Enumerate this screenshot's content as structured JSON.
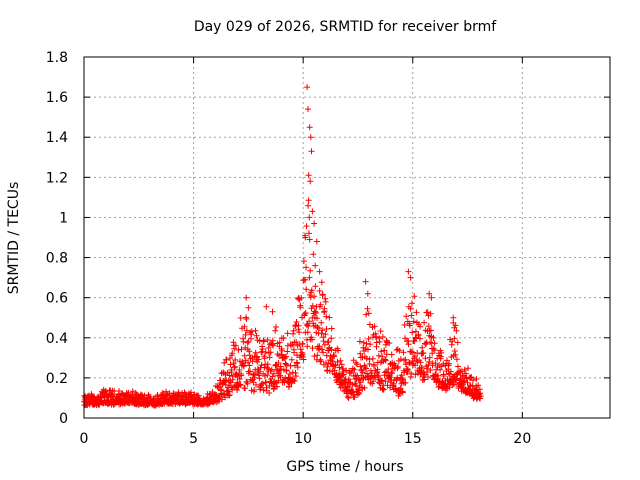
{
  "chart_data": {
    "type": "scatter",
    "title": "Day 029 of 2026, SRMTID for receiver brmf",
    "xlabel": "GPS time / hours",
    "ylabel": "SRMTID / TECUs",
    "xlim": [
      0,
      24
    ],
    "ylim": [
      0,
      1.8
    ],
    "xticks": [
      0,
      5,
      10,
      15,
      20
    ],
    "xtick_labels": [
      "0",
      "5",
      "10",
      "15",
      "20"
    ],
    "yticks": [
      0,
      0.2,
      0.4,
      0.6,
      0.8,
      1.0,
      1.2,
      1.4,
      1.6,
      1.8
    ],
    "ytick_labels": [
      "0",
      "0.2",
      "0.4",
      "0.6",
      "0.8",
      "1",
      "1.2",
      "1.4",
      "1.6",
      "1.8"
    ],
    "grid": true,
    "marker": "plus",
    "series_color": "#ff0000",
    "envelope": {
      "description": "typical level and upper spread of SRMTID vs time (hours, TECU)",
      "x": [
        0,
        1,
        2,
        3,
        4,
        5,
        5.5,
        6,
        6.5,
        7,
        7.3,
        7.5,
        8,
        8.5,
        9,
        9.5,
        10,
        10.2,
        10.5,
        11,
        11.5,
        12,
        12.5,
        12.8,
        13,
        13.5,
        14,
        14.5,
        14.8,
        15,
        15.5,
        15.8,
        16,
        16.5,
        16.9,
        17.2,
        17.5,
        18
      ],
      "base": [
        0.07,
        0.08,
        0.08,
        0.07,
        0.08,
        0.08,
        0.07,
        0.09,
        0.14,
        0.18,
        0.22,
        0.2,
        0.19,
        0.2,
        0.21,
        0.2,
        0.35,
        0.45,
        0.4,
        0.3,
        0.22,
        0.12,
        0.15,
        0.25,
        0.25,
        0.2,
        0.18,
        0.14,
        0.28,
        0.3,
        0.22,
        0.3,
        0.2,
        0.16,
        0.22,
        0.16,
        0.14,
        0.1
      ],
      "amp": [
        0.04,
        0.06,
        0.05,
        0.05,
        0.05,
        0.05,
        0.03,
        0.08,
        0.15,
        0.22,
        0.38,
        0.28,
        0.25,
        0.33,
        0.2,
        0.22,
        0.45,
        0.6,
        0.38,
        0.3,
        0.18,
        0.1,
        0.2,
        0.42,
        0.3,
        0.25,
        0.18,
        0.18,
        0.45,
        0.38,
        0.25,
        0.32,
        0.2,
        0.12,
        0.28,
        0.12,
        0.1,
        0.08
      ]
    },
    "peaks": [
      {
        "x": 10.18,
        "y": 1.65
      },
      {
        "x": 10.22,
        "y": 1.54
      },
      {
        "x": 10.3,
        "y": 1.45
      },
      {
        "x": 10.35,
        "y": 1.4
      },
      {
        "x": 10.38,
        "y": 1.33
      },
      {
        "x": 10.25,
        "y": 1.21
      },
      {
        "x": 10.32,
        "y": 1.18
      },
      {
        "x": 10.42,
        "y": 1.03
      },
      {
        "x": 10.28,
        "y": 1.0
      },
      {
        "x": 10.5,
        "y": 0.97
      },
      {
        "x": 10.1,
        "y": 0.9
      },
      {
        "x": 10.62,
        "y": 0.88
      },
      {
        "x": 10.55,
        "y": 0.76
      },
      {
        "x": 10.75,
        "y": 0.73
      },
      {
        "x": 7.4,
        "y": 0.6
      },
      {
        "x": 7.5,
        "y": 0.55
      },
      {
        "x": 8.6,
        "y": 0.53
      },
      {
        "x": 12.85,
        "y": 0.68
      },
      {
        "x": 12.95,
        "y": 0.62
      },
      {
        "x": 14.8,
        "y": 0.73
      },
      {
        "x": 14.9,
        "y": 0.7
      },
      {
        "x": 15.75,
        "y": 0.62
      },
      {
        "x": 15.85,
        "y": 0.6
      },
      {
        "x": 16.85,
        "y": 0.5
      },
      {
        "x": 16.9,
        "y": 0.45
      }
    ],
    "x_end": 18.1
  }
}
